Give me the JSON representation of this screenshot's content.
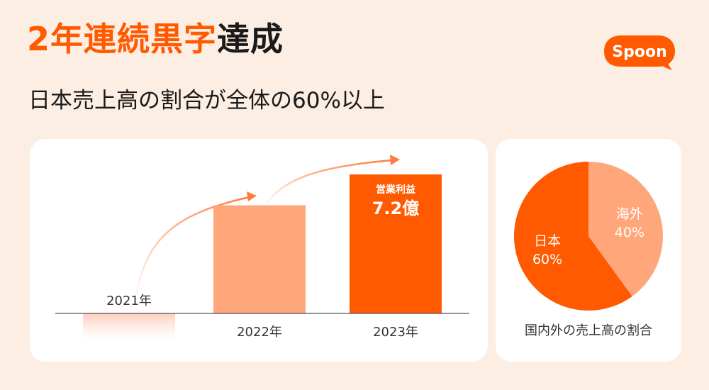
{
  "header": {
    "title_accent": "2年連続黒字",
    "title_rest": "達成",
    "subtitle": "日本売上高の割合が全体の60%以上",
    "logo_text": "Spoon"
  },
  "colors": {
    "accent": "#ff5a00",
    "light": "#ffa67a",
    "background": "#fdeee3"
  },
  "chart_data": [
    {
      "type": "bar",
      "categories": [
        "2021年",
        "2022年",
        "2023年"
      ],
      "values": [
        -1.4,
        5.6,
        7.2
      ],
      "title": "",
      "xlabel": "",
      "ylabel": "",
      "annotation": {
        "category": "2023年",
        "label": "営業利益",
        "value_text": "7.2億"
      },
      "grid": false,
      "legend": "none"
    },
    {
      "type": "pie",
      "title": "国内外の売上高の割合",
      "slices": [
        {
          "label": "日本",
          "value": 60,
          "value_text": "60%",
          "color": "#ff5a00"
        },
        {
          "label": "海外",
          "value": 40,
          "value_text": "40%",
          "color": "#ffa67a"
        }
      ],
      "legend": "none"
    }
  ]
}
